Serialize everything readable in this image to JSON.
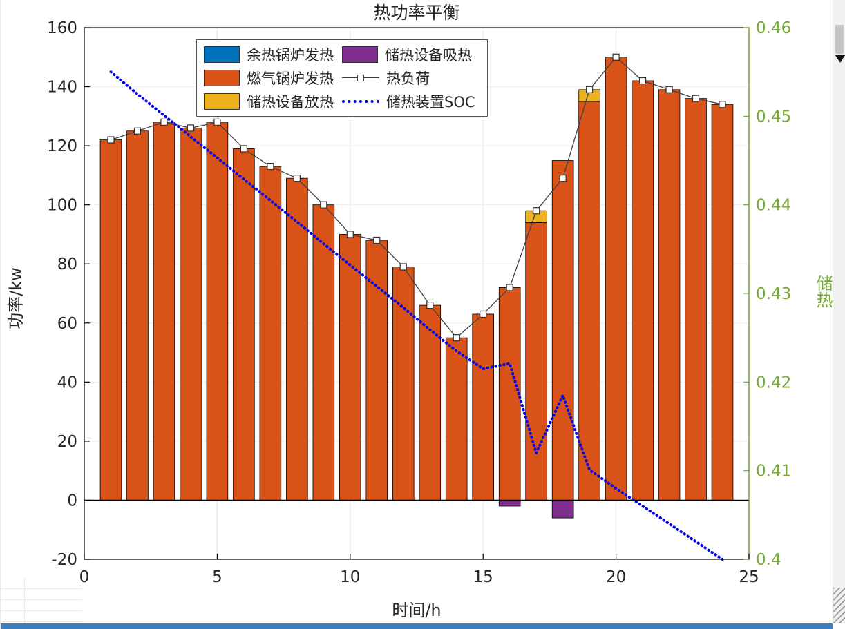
{
  "chart": {
    "title": "热功率平衡",
    "x_axis": {
      "label": "时间/h",
      "min": 0,
      "max": 25,
      "ticks": [
        0,
        5,
        10,
        15,
        20,
        25
      ]
    },
    "left_axis": {
      "label": "功率/kw",
      "min": -20,
      "max": 160,
      "ticks": [
        -20,
        0,
        20,
        40,
        60,
        80,
        100,
        120,
        140,
        160
      ]
    },
    "right_axis": {
      "label": "储热",
      "min": 0.4,
      "max": 0.46,
      "ticks": [
        0.4,
        0.41,
        0.42,
        0.43,
        0.44,
        0.45,
        0.46
      ],
      "color": "#77AC30"
    },
    "legend": [
      {
        "id": "waste-heat-boiler",
        "label": "余热锅炉发热",
        "swatch": "patch",
        "color": "#0072BD"
      },
      {
        "id": "gas-boiler",
        "label": "燃气锅炉发热",
        "swatch": "patch",
        "color": "#D95319"
      },
      {
        "id": "storage-discharge",
        "label": "储热设备放热",
        "swatch": "patch",
        "color": "#EDB120"
      },
      {
        "id": "storage-charge",
        "label": "储热设备吸热",
        "swatch": "patch",
        "color": "#7E2F8E"
      },
      {
        "id": "heat-load",
        "label": "热负荷",
        "swatch": "line-marker",
        "color": "#404040"
      },
      {
        "id": "soc",
        "label": "储热装置SOC",
        "swatch": "dotted-line",
        "color": "#0000EE"
      }
    ]
  },
  "chart_data": {
    "type": "bar",
    "x": [
      1,
      2,
      3,
      4,
      5,
      6,
      7,
      8,
      9,
      10,
      11,
      12,
      13,
      14,
      15,
      16,
      17,
      18,
      19,
      20,
      21,
      22,
      23,
      24
    ],
    "series": [
      {
        "id": "waste-heat-boiler",
        "name": "余热锅炉发热",
        "type": "bar",
        "stack": "up",
        "color": "#0072BD",
        "values": [
          0,
          0,
          0,
          0,
          0,
          0,
          0,
          0,
          0,
          0,
          0,
          0,
          0,
          0,
          0,
          0,
          0,
          0,
          0,
          0,
          0,
          0,
          0,
          0
        ]
      },
      {
        "id": "gas-boiler",
        "name": "燃气锅炉发热",
        "type": "bar",
        "stack": "up",
        "color": "#D95319",
        "values": [
          122,
          125,
          128,
          126,
          128,
          119,
          113,
          109,
          100,
          90,
          88,
          79,
          66,
          55,
          63,
          72,
          94,
          115,
          135,
          150,
          142,
          139,
          136,
          134
        ]
      },
      {
        "id": "storage-discharge",
        "name": "储热设备放热",
        "type": "bar",
        "stack": "up",
        "color": "#EDB120",
        "values": [
          0,
          0,
          0,
          0,
          0,
          0,
          0,
          0,
          0,
          0,
          0,
          0,
          0,
          0,
          0,
          0,
          4,
          0,
          4,
          0,
          0,
          0,
          0,
          0
        ]
      },
      {
        "id": "storage-charge",
        "name": "储热设备吸热",
        "type": "bar",
        "stack": "down",
        "color": "#7E2F8E",
        "values": [
          0,
          0,
          0,
          0,
          0,
          0,
          0,
          0,
          0,
          0,
          0,
          0,
          0,
          0,
          0,
          -2,
          0,
          -6,
          0,
          0,
          0,
          0,
          0,
          0
        ]
      },
      {
        "id": "heat-load",
        "name": "热负荷",
        "type": "line",
        "axis": "left",
        "color": "#404040",
        "marker": "square",
        "values": [
          122,
          125,
          128,
          126,
          128,
          119,
          113,
          109,
          100,
          90,
          88,
          79,
          66,
          55,
          63,
          72,
          98,
          109,
          139,
          150,
          142,
          139,
          136,
          134
        ]
      },
      {
        "id": "soc",
        "name": "储热装置SOC",
        "type": "line",
        "style": "dotted",
        "axis": "right",
        "color": "#0000EE",
        "values": [
          0.455,
          0.4525,
          0.4501,
          0.4477,
          0.4453,
          0.4429,
          0.4405,
          0.4381,
          0.4356,
          0.4332,
          0.4308,
          0.4284,
          0.4259,
          0.4235,
          0.4215,
          0.4221,
          0.412,
          0.4185,
          0.4101,
          0.408,
          0.406,
          0.404,
          0.402,
          0.4
        ]
      }
    ],
    "layout": {
      "grid": true,
      "legend_position": "top-left-inside"
    }
  }
}
